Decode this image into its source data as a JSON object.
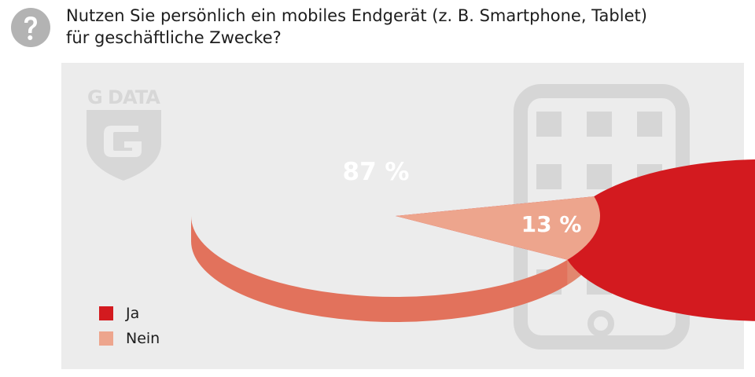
{
  "question": {
    "line1": "Nutzen Sie persönlich ein mobiles Endgerät (z. B. Smartphone, Tablet)",
    "line2": "für geschäftliche Zwecke?"
  },
  "icons": {
    "question": "question-mark-icon",
    "watermark": "g-data-logo",
    "background": "smartphone-icon"
  },
  "watermark_text": "G DATA",
  "colors": {
    "ja": "#d31a1f",
    "ja_side": "#e2725c",
    "nein": "#eda58d",
    "nein_side": "#e2876f",
    "panel": "#ececec",
    "watermark": "#d7d7d7"
  },
  "chart_data": {
    "type": "pie",
    "categories": [
      "Ja",
      "Nein"
    ],
    "values": [
      87,
      13
    ],
    "labels": [
      "87 %",
      "13 %"
    ],
    "legend_position": "bottom-left"
  }
}
